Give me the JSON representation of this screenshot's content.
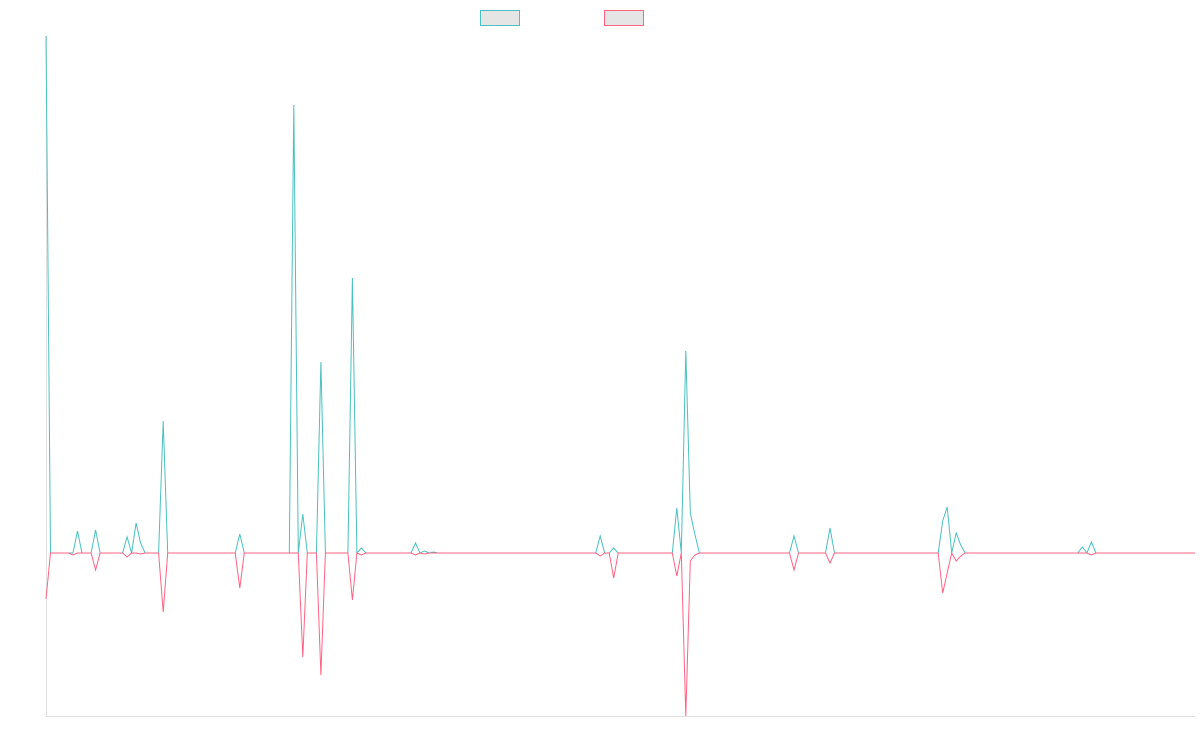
{
  "chart_data": {
    "type": "line",
    "title": "",
    "xlabel": "",
    "ylabel": "",
    "x_count": 256,
    "ylim": [
      -163,
      517
    ],
    "grid": false,
    "legend": "top-center",
    "series": [
      {
        "color": "#4bc0c0",
        "legend_fill": "#e5e5e5",
        "points": [
          [
            0,
            517
          ],
          [
            7,
            22
          ],
          [
            11,
            23
          ],
          [
            18,
            16
          ],
          [
            20,
            30
          ],
          [
            21,
            10
          ],
          [
            26,
            132
          ],
          [
            43,
            19
          ],
          [
            55,
            448
          ],
          [
            57,
            39
          ],
          [
            61,
            191
          ],
          [
            68,
            275
          ],
          [
            70,
            5
          ],
          [
            82,
            10
          ],
          [
            84,
            2
          ],
          [
            86,
            1
          ],
          [
            123,
            17
          ],
          [
            126,
            5
          ],
          [
            140,
            45
          ],
          [
            142,
            202
          ],
          [
            143,
            40
          ],
          [
            144,
            19
          ],
          [
            166,
            17
          ],
          [
            174,
            25
          ],
          [
            199,
            32
          ],
          [
            200,
            46
          ],
          [
            202,
            20
          ],
          [
            203,
            8
          ],
          [
            230,
            6
          ],
          [
            232,
            11
          ]
        ]
      },
      {
        "color": "#ff6384",
        "legend_fill": "#e5e5e5",
        "points": [
          [
            0,
            -46
          ],
          [
            6,
            -2
          ],
          [
            11,
            -17
          ],
          [
            18,
            -4
          ],
          [
            21,
            -1
          ],
          [
            26,
            -59
          ],
          [
            43,
            -35
          ],
          [
            57,
            -104
          ],
          [
            61,
            -122
          ],
          [
            68,
            -47
          ],
          [
            70,
            -2
          ],
          [
            82,
            -2
          ],
          [
            84,
            -1
          ],
          [
            123,
            -3
          ],
          [
            126,
            -25
          ],
          [
            140,
            -23
          ],
          [
            142,
            -163
          ],
          [
            143,
            -8
          ],
          [
            144,
            -2
          ],
          [
            166,
            -17
          ],
          [
            174,
            -10
          ],
          [
            199,
            -40
          ],
          [
            200,
            -20
          ],
          [
            202,
            -8
          ],
          [
            203,
            -3
          ],
          [
            232,
            -2
          ]
        ]
      }
    ]
  }
}
